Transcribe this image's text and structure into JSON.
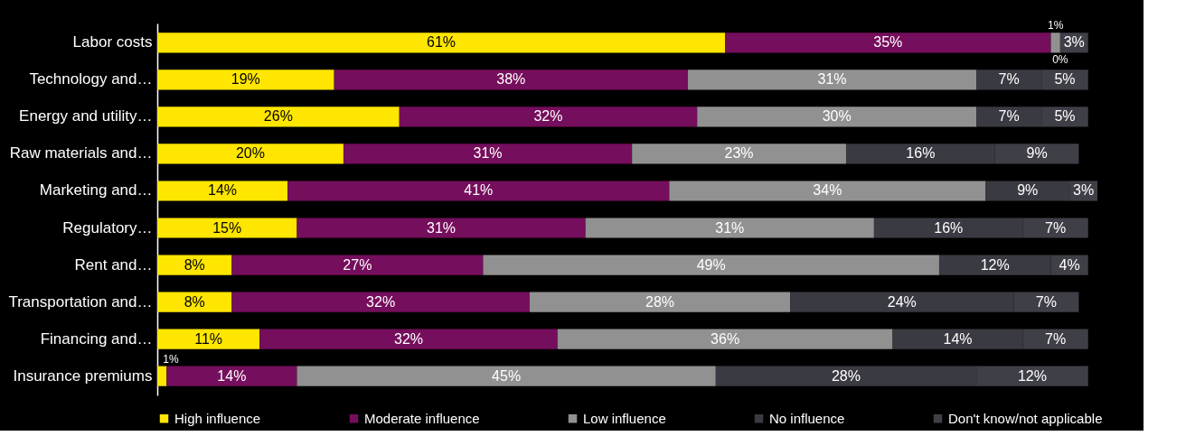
{
  "chart_data": {
    "type": "bar",
    "orientation": "horizontal",
    "stacked": true,
    "legend": "bottom",
    "categories": [
      "Labor costs",
      "Technology and…",
      "Energy and utility…",
      "Raw materials and…",
      "Marketing and…",
      "Regulatory…",
      "Rent and…",
      "Transportation and…",
      "Financing and…",
      "Insurance premiums"
    ],
    "series": [
      {
        "name": "High influence",
        "color": "#ffe600",
        "values": [
          61,
          19,
          26,
          20,
          14,
          15,
          8,
          8,
          11,
          1
        ],
        "value_labels": [
          "61%",
          "19%",
          "26%",
          "20%",
          "14%",
          "15%",
          "8%",
          "8%",
          "11%",
          "1%"
        ]
      },
      {
        "name": "Moderate influence",
        "color": "#750e5c",
        "values": [
          35,
          38,
          32,
          31,
          41,
          31,
          27,
          32,
          32,
          14
        ],
        "value_labels": [
          "35%",
          "38%",
          "32%",
          "31%",
          "41%",
          "31%",
          "27%",
          "32%",
          "32%",
          "14%"
        ]
      },
      {
        "name": "Low influence",
        "color": "#919191",
        "values": [
          1,
          31,
          30,
          23,
          34,
          31,
          49,
          28,
          36,
          45
        ],
        "value_labels": [
          "1%",
          "31%",
          "30%",
          "23%",
          "34%",
          "31%",
          "49%",
          "28%",
          "36%",
          "45%"
        ]
      },
      {
        "name": "No influence",
        "color": "#3a3a42",
        "values": [
          0,
          7,
          7,
          16,
          9,
          16,
          12,
          24,
          14,
          28
        ],
        "value_labels": [
          "0%",
          "7%",
          "7%",
          "16%",
          "9%",
          "16%",
          "12%",
          "24%",
          "14%",
          "28%"
        ]
      },
      {
        "name": "Don't know/not applicable",
        "color": "#3f3f47",
        "values": [
          3,
          5,
          5,
          9,
          3,
          7,
          4,
          7,
          7,
          12
        ],
        "value_labels": [
          "3%",
          "5%",
          "5%",
          "9%",
          "3%",
          "7%",
          "4%",
          "7%",
          "7%",
          "12%"
        ]
      }
    ]
  }
}
